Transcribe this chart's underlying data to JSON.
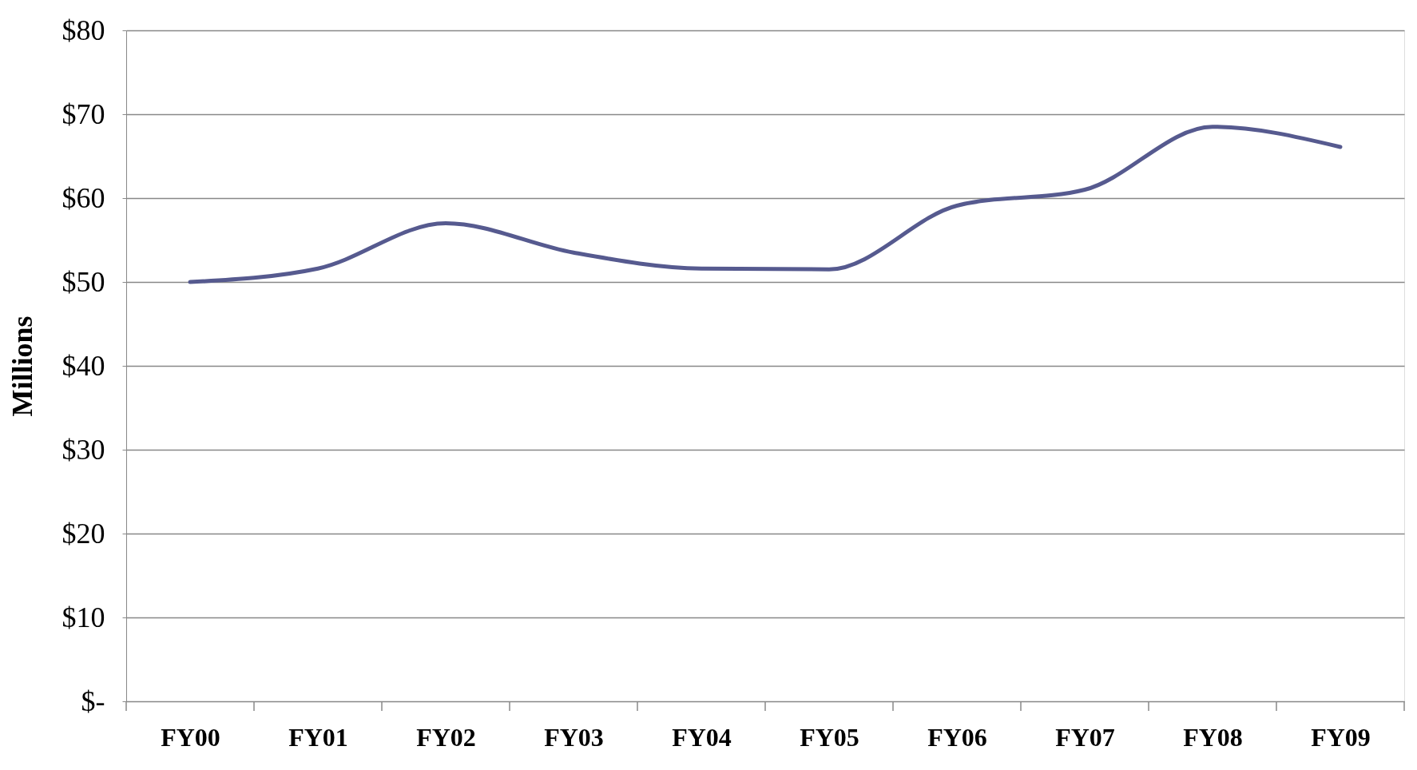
{
  "chart_data": {
    "type": "line",
    "ylabel": "Millions",
    "categories": [
      "FY00",
      "FY01",
      "FY02",
      "FY03",
      "FY04",
      "FY05",
      "FY06",
      "FY07",
      "FY08",
      "FY09"
    ],
    "series": [
      {
        "color": "#565a8f",
        "values": [
          50.0,
          51.6,
          57.0,
          53.5,
          51.6,
          51.5,
          59.1,
          61.0,
          68.5,
          66.1
        ]
      }
    ],
    "ylim": [
      0,
      80
    ],
    "yticks": [
      {
        "value": 0,
        "label": "$-"
      },
      {
        "value": 10,
        "label": "$10"
      },
      {
        "value": 20,
        "label": "$20"
      },
      {
        "value": 30,
        "label": "$30"
      },
      {
        "value": 40,
        "label": "$40"
      },
      {
        "value": 50,
        "label": "$50"
      },
      {
        "value": 60,
        "label": "$60"
      },
      {
        "value": 70,
        "label": "$70"
      },
      {
        "value": 80,
        "label": "$80"
      }
    ],
    "grid": "y",
    "marker": "none",
    "line_style": "solid"
  }
}
